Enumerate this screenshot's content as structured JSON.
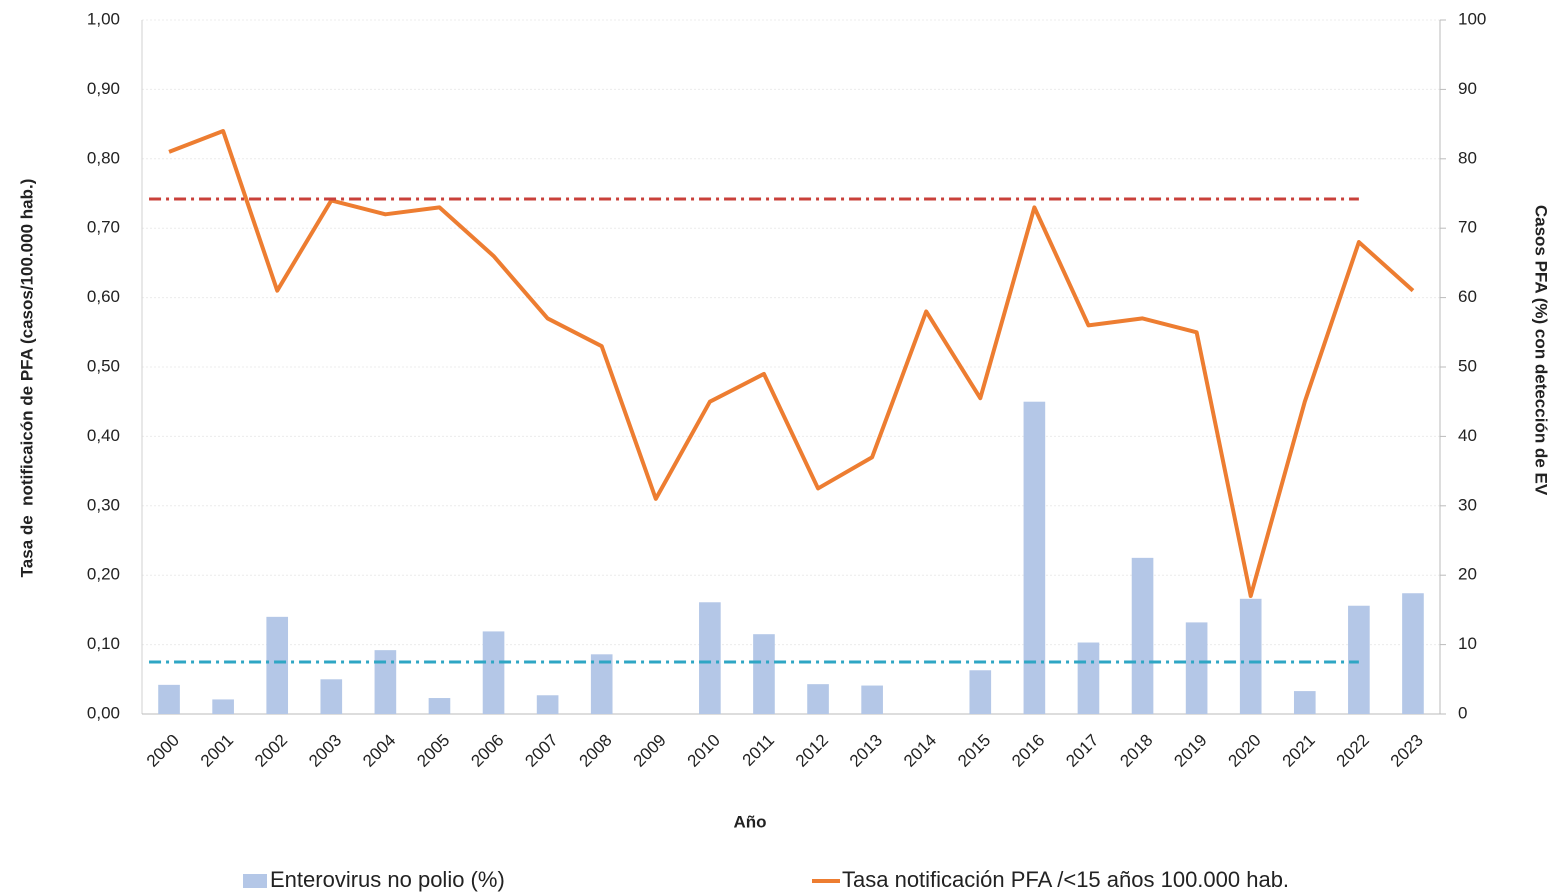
{
  "chart_data": {
    "type": "bar",
    "x_label": "Año",
    "y_label": "Tasa de  notificaicón de PFA (casos/100.000 hab.)",
    "y2_label": "Casos PFA (%) con detección de EV",
    "categories": [
      "2000",
      "2001",
      "2002",
      "2003",
      "2004",
      "2005",
      "2006",
      "2007",
      "2008",
      "2009",
      "2010",
      "2011",
      "2012",
      "2013",
      "2014",
      "2015",
      "2016",
      "2017",
      "2018",
      "2019",
      "2020",
      "2021",
      "2022",
      "2023"
    ],
    "series": [
      {
        "name": "Enterovirus no polio (%)",
        "type": "bar",
        "axis": "y2",
        "color": "#b4c7e7",
        "values": [
          4.2,
          2.1,
          14,
          5,
          9.2,
          2.3,
          11.9,
          2.7,
          8.6,
          null,
          16.1,
          11.5,
          4.3,
          4.1,
          null,
          6.3,
          45,
          10.3,
          22.5,
          13.2,
          16.6,
          3.3,
          15.6,
          17.4
        ]
      },
      {
        "name": "Tasa notificación PFA /<15 años 100.000 hab.",
        "type": "line",
        "axis": "y",
        "color": "#ed7d31",
        "values": [
          0.81,
          0.84,
          0.61,
          0.74,
          0.72,
          0.73,
          0.66,
          0.57,
          0.53,
          0.31,
          0.45,
          0.49,
          0.325,
          0.37,
          0.58,
          0.455,
          0.73,
          0.56,
          0.57,
          0.55,
          0.17,
          0.45,
          0.68,
          0.61
        ]
      }
    ],
    "reference_lines": [
      {
        "value": 0.742,
        "color": "#c9403a"
      },
      {
        "value": 0.075,
        "color": "#2fa6c4"
      }
    ],
    "ylim": [
      0,
      1
    ],
    "yticks": [
      {
        "value": 0,
        "label": "0,00"
      },
      {
        "value": 0.1,
        "label": "0,10"
      },
      {
        "value": 0.2,
        "label": "0,20"
      },
      {
        "value": 0.3,
        "label": "0,30"
      },
      {
        "value": 0.4,
        "label": "0,40"
      },
      {
        "value": 0.5,
        "label": "0,50"
      },
      {
        "value": 0.6,
        "label": "0,60"
      },
      {
        "value": 0.7,
        "label": "0,70"
      },
      {
        "value": 0.8,
        "label": "0,80"
      },
      {
        "value": 0.9,
        "label": "0,90"
      },
      {
        "value": 1,
        "label": "1,00"
      }
    ],
    "y2lim": [
      0,
      100
    ],
    "y2ticks": [
      0,
      10,
      20,
      30,
      40,
      50,
      60,
      70,
      80,
      90,
      100
    ],
    "grid": true
  }
}
